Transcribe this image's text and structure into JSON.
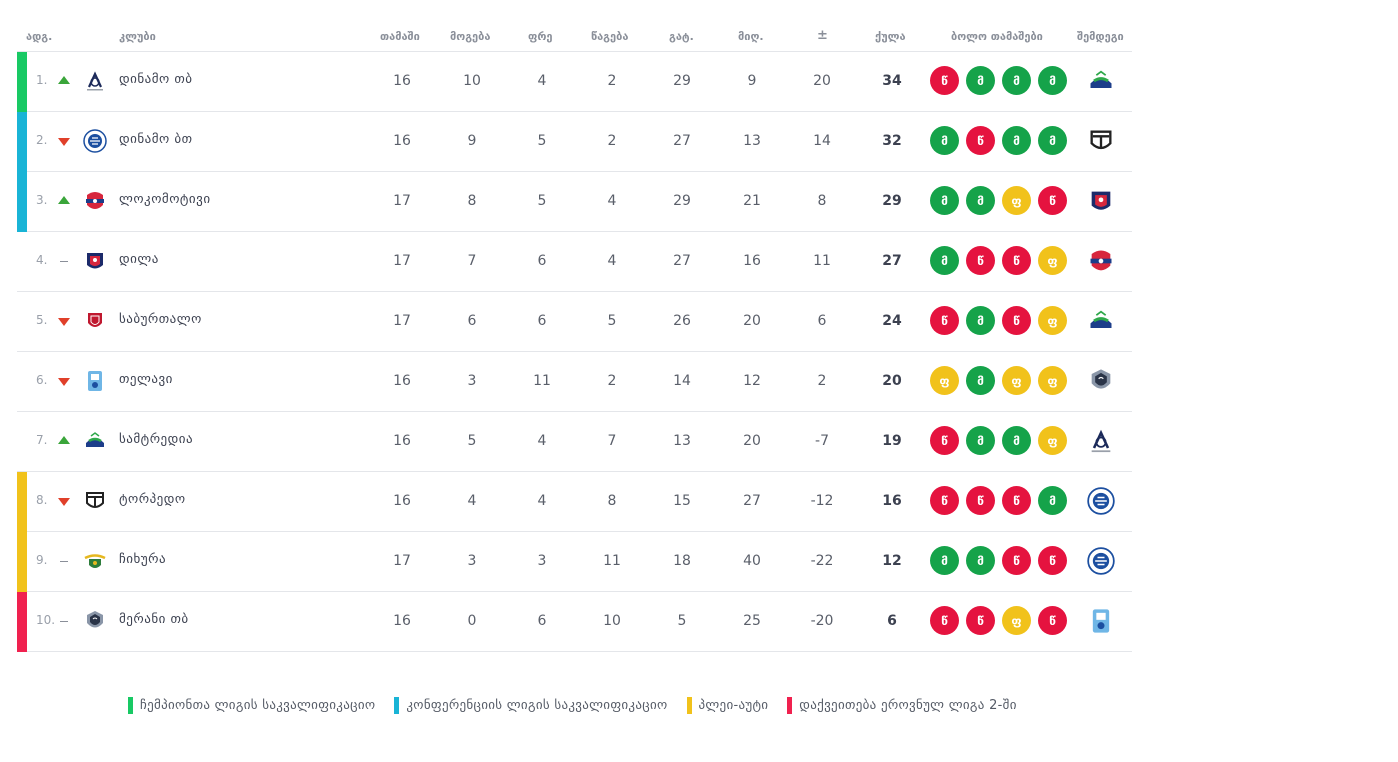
{
  "colors": {
    "champions": "#18c964",
    "conference": "#19b4d6",
    "playoff": "#f1c21b",
    "relegation": "#f0214f",
    "win": "#15a34a",
    "loss": "#e5133f",
    "draw": "#f1c21b"
  },
  "headers": {
    "pos": "ადგ.",
    "club": "კლუბი",
    "played": "თამაში",
    "wins": "მოგება",
    "draws": "ფრე",
    "losses": "წაგება",
    "gf": "გატ.",
    "ga": "მიღ.",
    "gd": "±",
    "points": "ქულა",
    "form": "ბოლო თამაშები",
    "next": "შემდეგი"
  },
  "rows": [
    {
      "pos": "1.",
      "trend": "up",
      "zone": "champions",
      "club": "დინამო თბ",
      "logo": "dinamo-tbilisi-logo",
      "p": "16",
      "w": "10",
      "d": "4",
      "l": "2",
      "gf": "29",
      "ga": "9",
      "gd": "20",
      "pts": "34",
      "form": [
        "წ",
        "მ",
        "მ",
        "მ"
      ],
      "next": "samtredia-logo"
    },
    {
      "pos": "2.",
      "trend": "down",
      "zone": "conference",
      "club": "დინამო ბთ",
      "logo": "dinamo-batumi-logo",
      "p": "16",
      "w": "9",
      "d": "5",
      "l": "2",
      "gf": "27",
      "ga": "13",
      "gd": "14",
      "pts": "32",
      "form": [
        "მ",
        "წ",
        "მ",
        "მ"
      ],
      "next": "torpedo-logo"
    },
    {
      "pos": "3.",
      "trend": "up",
      "zone": "conference",
      "club": "ლოკომოტივი",
      "logo": "lokomotivi-logo",
      "p": "17",
      "w": "8",
      "d": "5",
      "l": "4",
      "gf": "29",
      "ga": "21",
      "gd": "8",
      "pts": "29",
      "form": [
        "მ",
        "მ",
        "ფ",
        "წ"
      ],
      "next": "dila-logo"
    },
    {
      "pos": "4.",
      "trend": "same",
      "zone": "",
      "club": "დილა",
      "logo": "dila-logo",
      "p": "17",
      "w": "7",
      "d": "6",
      "l": "4",
      "gf": "27",
      "ga": "16",
      "gd": "11",
      "pts": "27",
      "form": [
        "მ",
        "წ",
        "წ",
        "ფ"
      ],
      "next": "lokomotivi-logo"
    },
    {
      "pos": "5.",
      "trend": "down",
      "zone": "",
      "club": "საბურთალო",
      "logo": "saburtalo-logo",
      "p": "17",
      "w": "6",
      "d": "6",
      "l": "5",
      "gf": "26",
      "ga": "20",
      "gd": "6",
      "pts": "24",
      "form": [
        "წ",
        "მ",
        "წ",
        "ფ"
      ],
      "next": "samtredia-logo"
    },
    {
      "pos": "6.",
      "trend": "down",
      "zone": "",
      "club": "თელავი",
      "logo": "telavi-logo",
      "p": "16",
      "w": "3",
      "d": "11",
      "l": "2",
      "gf": "14",
      "ga": "12",
      "gd": "2",
      "pts": "20",
      "form": [
        "ფ",
        "მ",
        "ფ",
        "ფ"
      ],
      "next": "merani-logo"
    },
    {
      "pos": "7.",
      "trend": "up",
      "zone": "",
      "club": "სამტრედია",
      "logo": "samtredia-logo",
      "p": "16",
      "w": "5",
      "d": "4",
      "l": "7",
      "gf": "13",
      "ga": "20",
      "gd": "-7",
      "pts": "19",
      "form": [
        "წ",
        "მ",
        "მ",
        "ფ"
      ],
      "next": "dinamo-tbilisi-logo"
    },
    {
      "pos": "8.",
      "trend": "down",
      "zone": "playoff",
      "club": "ტორპედო",
      "logo": "torpedo-logo",
      "p": "16",
      "w": "4",
      "d": "4",
      "l": "8",
      "gf": "15",
      "ga": "27",
      "gd": "-12",
      "pts": "16",
      "form": [
        "წ",
        "წ",
        "წ",
        "მ"
      ],
      "next": "dinamo-batumi-logo"
    },
    {
      "pos": "9.",
      "trend": "same",
      "zone": "playoff",
      "club": "ჩიხურა",
      "logo": "chikhura-logo",
      "p": "17",
      "w": "3",
      "d": "3",
      "l": "11",
      "gf": "18",
      "ga": "40",
      "gd": "-22",
      "pts": "12",
      "form": [
        "მ",
        "მ",
        "წ",
        "წ"
      ],
      "next": "dinamo-batumi-logo"
    },
    {
      "pos": "10.",
      "trend": "same",
      "zone": "relegation",
      "club": "მერანი თბ",
      "logo": "merani-logo",
      "p": "16",
      "w": "0",
      "d": "6",
      "l": "10",
      "gf": "5",
      "ga": "25",
      "gd": "-20",
      "pts": "6",
      "form": [
        "წ",
        "წ",
        "ფ",
        "წ"
      ],
      "next": "telavi-logo"
    }
  ],
  "legend": [
    {
      "zone": "champions",
      "label": "ჩემპიონთა ლიგის საკვალიფიკაციო"
    },
    {
      "zone": "conference",
      "label": "კონფერენციის ლიგის საკვალიფიკაციო"
    },
    {
      "zone": "playoff",
      "label": "პლეი-აუტი"
    },
    {
      "zone": "relegation",
      "label": "დაქვეითება ეროვნულ ლიგა 2-ში"
    }
  ]
}
